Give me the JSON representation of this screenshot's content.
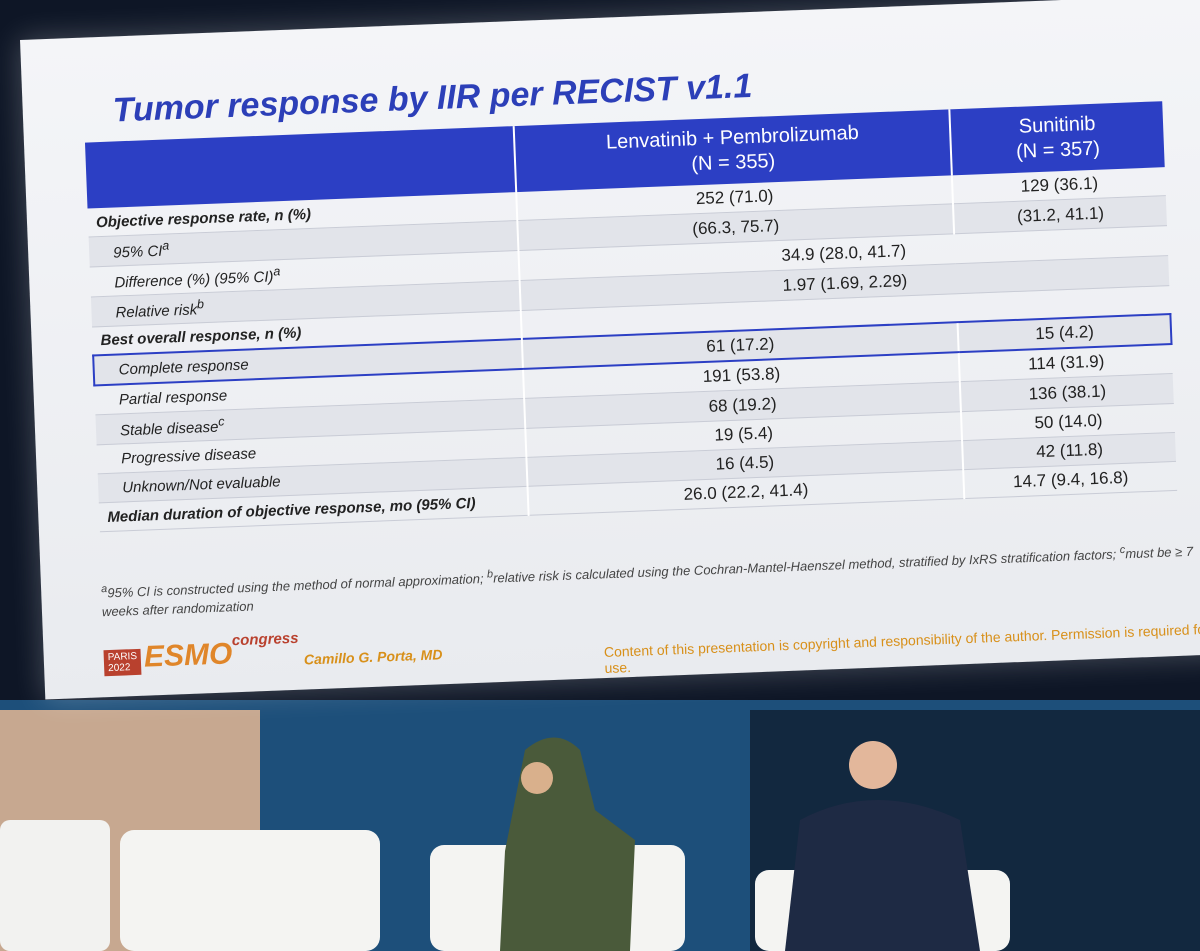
{
  "slide": {
    "title": "Tumor response by IIR per RECIST v1.1",
    "table": {
      "header": [
        {
          "name": "Lenvatinib + Pembrolizumab",
          "n": "(N = 355)"
        },
        {
          "name": "Sunitinib",
          "n": "(N = 357)"
        }
      ],
      "rows": [
        {
          "label": "Objective response rate, n (%)",
          "bold": true,
          "values": [
            "252 (71.0)",
            "129 (36.1)"
          ]
        },
        {
          "label": "95% CI",
          "sup": "a",
          "values": [
            "(66.3, 75.7)",
            "(31.2, 41.1)"
          ]
        },
        {
          "label": "Difference (%) (95% CI)",
          "sup": "a",
          "values": [
            "34.9 (28.0, 41.7)"
          ]
        },
        {
          "label": "Relative risk",
          "sup": "b",
          "values": [
            "1.97 (1.69, 2.29)"
          ]
        },
        {
          "label": "Best overall response, n (%)",
          "bold": true,
          "values": []
        },
        {
          "label": "Complete response",
          "highlight": true,
          "values": [
            "61 (17.2)",
            "15 (4.2)"
          ]
        },
        {
          "label": "Partial response",
          "values": [
            "191 (53.8)",
            "114 (31.9)"
          ]
        },
        {
          "label": "Stable disease",
          "sup": "c",
          "values": [
            "68 (19.2)",
            "136 (38.1)"
          ]
        },
        {
          "label": "Progressive disease",
          "values": [
            "19 (5.4)",
            "50 (14.0)"
          ]
        },
        {
          "label": "Unknown/Not evaluable",
          "values": [
            "16 (4.5)",
            "42 (11.8)"
          ]
        },
        {
          "label": "Median duration of objective response, mo (95% CI)",
          "bold": true,
          "values": [
            "26.0 (22.2, 41.4)",
            "14.7 (9.4, 16.8)"
          ]
        }
      ]
    },
    "footnotes": [
      {
        "mark": "a",
        "text": "95% CI is constructed using the method of normal approximation; "
      },
      {
        "mark": "b",
        "text": "relative risk is calculated using the Cochran-Mantel-Haenszel method, stratified by IxRS stratification factors; "
      },
      {
        "mark": "c",
        "text": "must be ≥ 7 weeks after randomization"
      }
    ],
    "footer": {
      "city": "PARIS",
      "year": "2022",
      "brand": "ESMO",
      "event": "congress",
      "presenter": "Camillo G. Porta, MD",
      "copyright": "Content of this presentation is copyright and responsibility of the author. Permission is required for re-use."
    }
  }
}
